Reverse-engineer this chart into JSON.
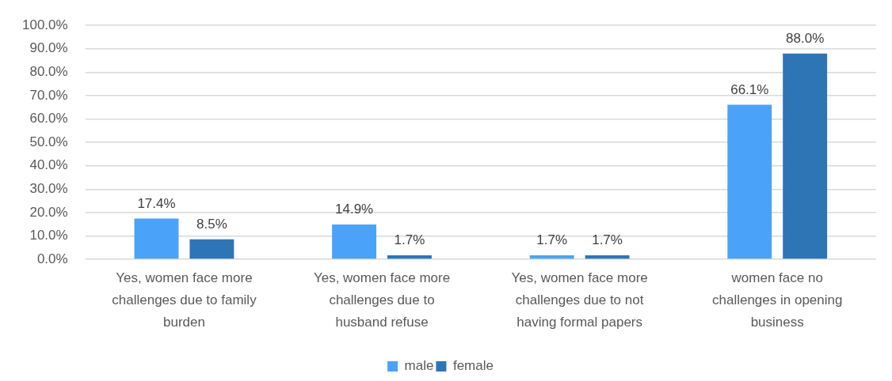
{
  "chart_data": {
    "type": "bar",
    "categories": [
      "Yes, women face more challenges due to family burden",
      "Yes, women face more challenges due to husband refuse",
      "Yes, women face more challenges due to not having formal papers",
      "women face no challenges in opening business"
    ],
    "series": [
      {
        "name": "male",
        "color": "#4ba3f9",
        "values": [
          17.4,
          14.9,
          1.7,
          66.1
        ],
        "value_labels": [
          "17.4%",
          "14.9%",
          "1.7%",
          "66.1%"
        ]
      },
      {
        "name": "female",
        "color": "#2e75b6",
        "values": [
          8.5,
          1.7,
          1.7,
          88.0
        ],
        "value_labels": [
          "8.5%",
          "1.7%",
          "1.7%",
          "88.0%"
        ]
      }
    ],
    "ylim": [
      0,
      100
    ],
    "yticks": [
      {
        "value": 0,
        "label": "0.0%"
      },
      {
        "value": 10,
        "label": "10.0%"
      },
      {
        "value": 20,
        "label": "20.0%"
      },
      {
        "value": 30,
        "label": "30.0%"
      },
      {
        "value": 40,
        "label": "40.0%"
      },
      {
        "value": 50,
        "label": "50.0%"
      },
      {
        "value": 60,
        "label": "60.0%"
      },
      {
        "value": 70,
        "label": "70.0%"
      },
      {
        "value": 80,
        "label": "80.0%"
      },
      {
        "value": 90,
        "label": "90.0%"
      },
      {
        "value": 100,
        "label": "100.0%"
      }
    ],
    "grid": "y",
    "legend": "bottom"
  }
}
